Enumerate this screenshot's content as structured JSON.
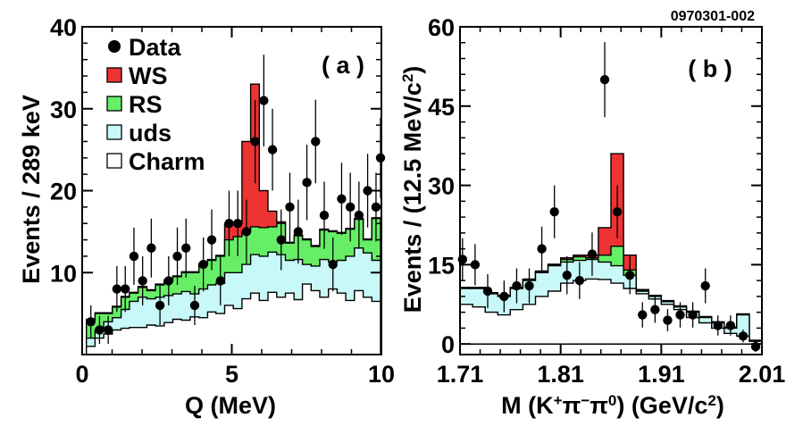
{
  "figure_id": "0970301-002",
  "colors": {
    "WS": "#ee3333",
    "RS": "#66ee66",
    "uds": "#c8f8f8",
    "Charm": "#ffffff",
    "Data": "#000000"
  },
  "chart_data": [
    {
      "type": "histogram",
      "panel_label": "( a )",
      "xlabel": "Q (MeV)",
      "ylabel": "Events / 289 keV",
      "xlim": [
        0,
        10
      ],
      "ylim": [
        0,
        40
      ],
      "xticks": [
        {
          "v": 0,
          "label": "0"
        },
        {
          "v": 5,
          "label": "5"
        },
        {
          "v": 10,
          "label": "10"
        }
      ],
      "yticks": [
        {
          "v": 10,
          "label": "10"
        },
        {
          "v": 20,
          "label": "20"
        },
        {
          "v": 30,
          "label": "30"
        },
        {
          "v": 40,
          "label": "40"
        }
      ],
      "legend": [
        {
          "key": "Data",
          "label": "Data",
          "marker": "dot"
        },
        {
          "key": "WS",
          "label": "WS",
          "marker": "box"
        },
        {
          "key": "RS",
          "label": "RS",
          "marker": "box"
        },
        {
          "key": "uds",
          "label": "uds",
          "marker": "box"
        },
        {
          "key": "Charm",
          "label": "Charm",
          "marker": "box"
        }
      ],
      "bin_edges": [
        0.14,
        0.43,
        0.72,
        1.01,
        1.3,
        1.58,
        1.87,
        2.16,
        2.45,
        2.74,
        3.03,
        3.32,
        3.61,
        3.9,
        4.19,
        4.47,
        4.76,
        5.05,
        5.34,
        5.63,
        5.92,
        6.21,
        6.5,
        6.79,
        7.08,
        7.36,
        7.65,
        7.94,
        8.23,
        8.52,
        8.81,
        9.1,
        9.39,
        9.68,
        9.97
      ],
      "stacks": {
        "Charm": [
          1.0,
          2.0,
          2.5,
          3.0,
          3.2,
          3.3,
          3.3,
          3.6,
          3.5,
          3.9,
          4.3,
          4.2,
          4.6,
          4.5,
          5.2,
          5.0,
          6.0,
          5.6,
          6.8,
          7.5,
          6.6,
          7.6,
          7.0,
          7.5,
          6.7,
          8.6,
          7.8,
          7.0,
          8.0,
          7.5,
          6.6,
          7.8,
          7.0,
          6.5
        ],
        "uds": [
          2.0,
          3.0,
          4.0,
          4.5,
          5.5,
          6.5,
          7.0,
          6.8,
          7.0,
          7.2,
          7.4,
          7.7,
          7.4,
          8.0,
          8.5,
          8.7,
          10.0,
          10.0,
          11.0,
          12.2,
          12.0,
          12.5,
          12.2,
          11.5,
          11.6,
          11.0,
          10.8,
          11.6,
          11.3,
          11.5,
          12.0,
          13.0,
          12.4,
          11.5
        ],
        "RS": [
          4.2,
          5.0,
          5.0,
          5.8,
          7.0,
          7.5,
          8.2,
          7.8,
          8.5,
          9.0,
          9.5,
          10.0,
          10.0,
          11.0,
          11.5,
          12.0,
          14.0,
          14.4,
          15.0,
          15.6,
          15.5,
          15.6,
          16.0,
          13.6,
          14.5,
          14.0,
          13.2,
          15.2,
          15.0,
          14.8,
          15.3,
          16.5,
          14.0,
          16.6
        ],
        "WS": [
          4.3,
          5.1,
          5.1,
          5.9,
          7.1,
          7.6,
          8.3,
          7.9,
          8.6,
          9.1,
          9.6,
          10.1,
          10.1,
          11.1,
          11.6,
          12.1,
          16.0,
          16.0,
          26.0,
          33.0,
          20.0,
          17.5,
          16.2,
          13.7,
          14.6,
          14.1,
          13.3,
          15.3,
          15.1,
          14.9,
          15.4,
          16.6,
          14.1,
          16.7
        ]
      },
      "points": [
        {
          "x": 0.29,
          "y": 4,
          "err": 2.0
        },
        {
          "x": 0.58,
          "y": 3,
          "err": 1.7
        },
        {
          "x": 0.87,
          "y": 3,
          "err": 1.7
        },
        {
          "x": 1.16,
          "y": 8,
          "err": 2.8
        },
        {
          "x": 1.44,
          "y": 8,
          "err": 2.8
        },
        {
          "x": 1.73,
          "y": 12,
          "err": 3.5
        },
        {
          "x": 2.02,
          "y": 9,
          "err": 3.0
        },
        {
          "x": 2.31,
          "y": 13,
          "err": 3.6
        },
        {
          "x": 2.6,
          "y": 6,
          "err": 2.4
        },
        {
          "x": 2.89,
          "y": 9,
          "err": 3.0
        },
        {
          "x": 3.18,
          "y": 12,
          "err": 3.5
        },
        {
          "x": 3.47,
          "y": 13,
          "err": 3.6
        },
        {
          "x": 3.76,
          "y": 6,
          "err": 2.4
        },
        {
          "x": 4.05,
          "y": 11,
          "err": 3.3
        },
        {
          "x": 4.33,
          "y": 14,
          "err": 3.7
        },
        {
          "x": 4.62,
          "y": 9,
          "err": 3.0
        },
        {
          "x": 4.91,
          "y": 16,
          "err": 4.0
        },
        {
          "x": 5.2,
          "y": 16,
          "err": 4.0
        },
        {
          "x": 5.49,
          "y": 15,
          "err": 3.9
        },
        {
          "x": 5.78,
          "y": 26,
          "err": 5.1
        },
        {
          "x": 6.07,
          "y": 31,
          "err": 5.6
        },
        {
          "x": 6.36,
          "y": 25,
          "err": 5.0
        },
        {
          "x": 6.65,
          "y": 14,
          "err": 3.7
        },
        {
          "x": 6.94,
          "y": 18,
          "err": 4.2
        },
        {
          "x": 7.22,
          "y": 15,
          "err": 3.9
        },
        {
          "x": 7.51,
          "y": 21,
          "err": 4.6
        },
        {
          "x": 7.8,
          "y": 26,
          "err": 5.1
        },
        {
          "x": 8.09,
          "y": 17,
          "err": 4.1
        },
        {
          "x": 8.38,
          "y": 11,
          "err": 3.3
        },
        {
          "x": 8.67,
          "y": 19,
          "err": 4.4
        },
        {
          "x": 8.96,
          "y": 18,
          "err": 4.2
        },
        {
          "x": 9.25,
          "y": 17,
          "err": 4.1
        },
        {
          "x": 9.54,
          "y": 20,
          "err": 4.5
        },
        {
          "x": 9.82,
          "y": 18,
          "err": 4.2
        },
        {
          "x": 9.97,
          "y": 24,
          "err": 4.9
        }
      ]
    },
    {
      "type": "histogram",
      "panel_label": "( b )",
      "xlabel": "M (K+π−π0) (GeV/c2)",
      "ylabel": "Events / (12.5 MeV/c2)",
      "xlim": [
        1.71,
        2.01
      ],
      "ylim": [
        -2,
        60
      ],
      "xticks": [
        {
          "v": 1.71,
          "label": "1.71"
        },
        {
          "v": 1.81,
          "label": "1.81"
        },
        {
          "v": 1.91,
          "label": "1.91"
        },
        {
          "v": 2.01,
          "label": "2.01"
        }
      ],
      "yticks": [
        {
          "v": 0,
          "label": "0"
        },
        {
          "v": 15,
          "label": "15"
        },
        {
          "v": 30,
          "label": "30"
        },
        {
          "v": 45,
          "label": "45"
        },
        {
          "v": 60,
          "label": "60"
        }
      ],
      "bin_edges": [
        1.71,
        1.7225,
        1.735,
        1.7475,
        1.76,
        1.7725,
        1.785,
        1.7975,
        1.81,
        1.8225,
        1.835,
        1.8475,
        1.86,
        1.8725,
        1.885,
        1.8975,
        1.91,
        1.9225,
        1.935,
        1.9475,
        1.96,
        1.9725,
        1.985,
        1.9975,
        2.01
      ],
      "stacks": {
        "Charm": [
          7.5,
          7.0,
          6.0,
          5.5,
          6.5,
          7.5,
          9.0,
          10.0,
          11.5,
          12.0,
          12.3,
          12.2,
          11.5,
          10.5,
          9.5,
          8.5,
          7.5,
          6.5,
          5.0,
          4.0,
          3.0,
          2.0,
          1.5,
          0.5
        ],
        "uds": [
          10.5,
          10.5,
          9.5,
          9.0,
          10.5,
          12.0,
          13.5,
          14.8,
          15.5,
          15.8,
          16.0,
          15.5,
          14.8,
          13.0,
          10.0,
          9.0,
          8.0,
          7.0,
          6.0,
          5.0,
          4.0,
          3.0,
          5.5,
          0.5
        ],
        "RS": [
          10.6,
          10.6,
          9.6,
          9.1,
          10.6,
          12.2,
          13.7,
          15.0,
          16.0,
          16.5,
          16.3,
          16.8,
          18.5,
          14.0,
          10.2,
          9.1,
          8.1,
          7.1,
          6.1,
          5.1,
          4.1,
          3.1,
          5.6,
          0.6
        ],
        "WS": [
          10.7,
          10.7,
          9.7,
          9.2,
          10.7,
          12.3,
          13.8,
          15.1,
          16.3,
          16.8,
          16.8,
          22.0,
          36.0,
          16.8,
          10.3,
          9.2,
          8.2,
          7.2,
          6.2,
          5.2,
          4.2,
          3.2,
          5.7,
          0.7
        ]
      },
      "points": [
        {
          "x": 1.7125,
          "y": 16,
          "err": 4.0
        },
        {
          "x": 1.725,
          "y": 15,
          "err": 3.9
        },
        {
          "x": 1.7375,
          "y": 10,
          "err": 3.2
        },
        {
          "x": 1.7538,
          "y": 9,
          "err": 3.0
        },
        {
          "x": 1.7663,
          "y": 11,
          "err": 3.3
        },
        {
          "x": 1.7788,
          "y": 11,
          "err": 3.3
        },
        {
          "x": 1.7913,
          "y": 18,
          "err": 4.2
        },
        {
          "x": 1.8038,
          "y": 25,
          "err": 5.0
        },
        {
          "x": 1.8163,
          "y": 13,
          "err": 3.6
        },
        {
          "x": 1.8288,
          "y": 12,
          "err": 3.5
        },
        {
          "x": 1.8413,
          "y": 17,
          "err": 4.1
        },
        {
          "x": 1.8538,
          "y": 50,
          "err": 7.1
        },
        {
          "x": 1.8663,
          "y": 25,
          "err": 5.0
        },
        {
          "x": 1.8788,
          "y": 13,
          "err": 3.6
        },
        {
          "x": 1.8913,
          "y": 5.5,
          "err": 2.4
        },
        {
          "x": 1.9038,
          "y": 6.5,
          "err": 2.5
        },
        {
          "x": 1.9163,
          "y": 4.5,
          "err": 2.1
        },
        {
          "x": 1.9288,
          "y": 5.5,
          "err": 2.4
        },
        {
          "x": 1.9413,
          "y": 5.5,
          "err": 2.4
        },
        {
          "x": 1.9538,
          "y": 11,
          "err": 3.3
        },
        {
          "x": 1.9663,
          "y": 3.5,
          "err": 1.9
        },
        {
          "x": 1.9788,
          "y": 3.5,
          "err": 1.9
        },
        {
          "x": 1.9913,
          "y": 1.5,
          "err": 1.2
        },
        {
          "x": 2.0038,
          "y": -0.5,
          "err": 1.0
        }
      ]
    }
  ]
}
